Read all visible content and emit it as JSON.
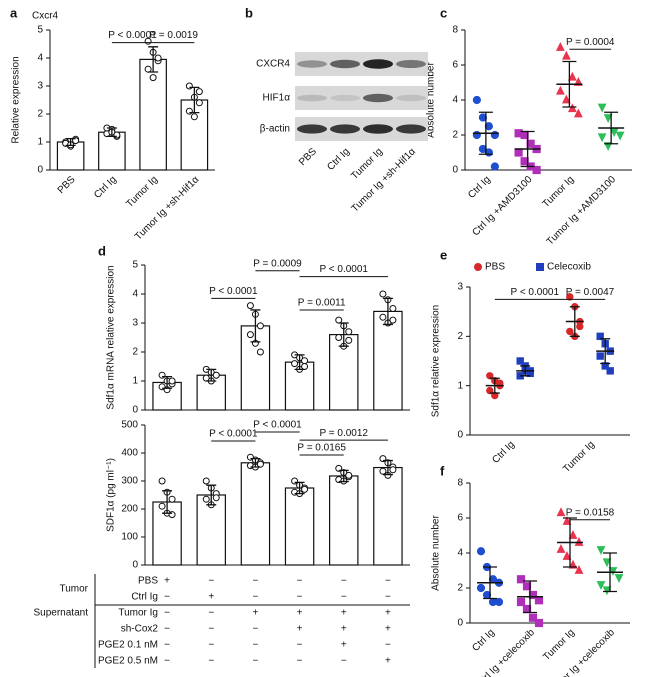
{
  "chart_data": [
    {
      "type": "bar",
      "panel": "a",
      "title": "Cxcr4",
      "ylabel": "Relative expression",
      "categories": [
        "PBS",
        "Ctrl Ig",
        "Tumor Ig",
        "Tumor Ig +sh-Hif1α"
      ],
      "ylim": [
        0,
        5
      ],
      "yticks": [
        0,
        1,
        2,
        3,
        4,
        5
      ],
      "series": [
        {
          "color": "#ffffff",
          "values": [
            1.0,
            1.35,
            3.95,
            2.5
          ],
          "errors": [
            0.12,
            0.15,
            0.45,
            0.45
          ],
          "points": [
            [
              1.0,
              0.85,
              1.1,
              0.95,
              0.9,
              1.05
            ],
            [
              1.3,
              1.45,
              1.2,
              1.5,
              1.35,
              1.25
            ],
            [
              4.6,
              4.2,
              3.9,
              3.6,
              3.3,
              4.0
            ],
            [
              3.0,
              2.6,
              2.4,
              2.1,
              1.9,
              2.8
            ]
          ]
        }
      ],
      "annotations": [
        "P < 0.0001",
        "P = 0.0019"
      ]
    },
    {
      "type": "dot",
      "panel": "c",
      "ylabel": "Absolute number",
      "categories": [
        "Ctrl Ig",
        "Ctrl Ig +AMD3100",
        "Tumor Ig",
        "Tumor Ig +AMD3100"
      ],
      "ylim": [
        0,
        8
      ],
      "yticks": [
        0,
        2,
        4,
        6,
        8
      ],
      "series": [
        {
          "colors": [
            "#1f4fd0",
            "#b02fb8",
            "#e8344e",
            "#2dbe5a"
          ],
          "markers": [
            "circle",
            "square",
            "triangle",
            "triangle-down"
          ],
          "values": [
            2.1,
            1.2,
            4.9,
            2.4
          ],
          "errors": [
            1.2,
            1.0,
            1.3,
            0.9
          ],
          "points": [
            [
              4.0,
              3.0,
              2.5,
              2.0,
              2.0,
              1.2,
              1.0,
              0.2
            ],
            [
              2.1,
              2.0,
              1.5,
              1.2,
              1.0,
              0.5,
              0.2,
              0.0
            ],
            [
              7.0,
              6.5,
              5.3,
              5.0,
              4.5,
              4.0,
              3.5,
              3.2
            ],
            [
              3.6,
              3.0,
              2.2,
              2.0,
              1.9,
              1.4
            ]
          ]
        }
      ],
      "annotations": [
        "P = 0.0004"
      ]
    },
    {
      "type": "bar",
      "panel": "d",
      "ylabel": "Sdf1α mRNA relative expression",
      "categories": [
        null,
        null,
        null,
        null,
        null,
        null
      ],
      "ylim": [
        0,
        5
      ],
      "yticks": [
        0,
        1,
        2,
        3,
        4,
        5
      ],
      "series": [
        {
          "color": "#ffffff",
          "values": [
            0.95,
            1.2,
            2.9,
            1.65,
            2.6,
            3.4
          ],
          "errors": [
            0.2,
            0.2,
            0.55,
            0.25,
            0.4,
            0.45
          ],
          "points": [
            [
              1.2,
              1.0,
              0.9,
              0.8,
              0.7,
              1.0
            ],
            [
              1.4,
              1.3,
              1.2,
              1.1,
              1.0,
              1.2
            ],
            [
              3.6,
              3.3,
              2.9,
              2.6,
              2.3,
              2.0
            ],
            [
              1.9,
              1.8,
              1.7,
              1.6,
              1.4,
              1.5
            ],
            [
              3.1,
              2.9,
              2.7,
              2.5,
              2.2,
              2.4
            ],
            [
              4.0,
              3.8,
              3.5,
              3.2,
              3.0,
              3.1
            ]
          ]
        }
      ],
      "annotations": [
        "P < 0.0001",
        "P = 0.0009",
        "P < 0.0001",
        "P = 0.0011"
      ]
    },
    {
      "type": "bar",
      "ylabel": "SDF1α (pg ml⁻¹)",
      "categories": [
        null,
        null,
        null,
        null,
        null,
        null
      ],
      "ylim": [
        0,
        500
      ],
      "yticks": [
        0,
        100,
        200,
        300,
        400,
        500
      ],
      "series": [
        {
          "color": "#ffffff",
          "values": [
            225,
            250,
            365,
            275,
            318,
            348
          ],
          "errors": [
            40,
            35,
            15,
            20,
            20,
            25
          ],
          "points": [
            [
              300,
              260,
              235,
              210,
              185,
              180
            ],
            [
              300,
              275,
              255,
              235,
              215,
              240
            ],
            [
              385,
              375,
              365,
              355,
              350,
              360
            ],
            [
              300,
              285,
              275,
              260,
              255,
              270
            ],
            [
              345,
              330,
              315,
              305,
              300,
              320
            ],
            [
              380,
              365,
              350,
              335,
              320,
              340
            ]
          ]
        }
      ],
      "annotations": [
        "P < 0.0001",
        "P < 0.0001",
        "P = 0.0012",
        "P = 0.0165"
      ]
    },
    {
      "type": "grouped-dot",
      "panel": "e",
      "ylabel": "Sdf1α relative expression",
      "categories": [
        "Ctrl Ig",
        "Tumor Ig"
      ],
      "ylim": [
        0,
        3
      ],
      "yticks": [
        0,
        1,
        2,
        3
      ],
      "series": [
        {
          "name": "PBS",
          "color": "#d62828",
          "marker": "circle",
          "values": [
            1.0,
            2.3
          ],
          "errors": [
            0.15,
            0.3
          ],
          "points": [
            [
              1.2,
              1.1,
              1.0,
              0.9,
              0.8,
              1.05
            ],
            [
              2.8,
              2.6,
              2.3,
              2.1,
              2.0,
              2.2
            ]
          ]
        },
        {
          "name": "Celecoxib",
          "color": "#1f3fbf",
          "marker": "square",
          "values": [
            1.3,
            1.7
          ],
          "errors": [
            0.1,
            0.25
          ],
          "points": [
            [
              1.5,
              1.4,
              1.3,
              1.2,
              1.3,
              1.25
            ],
            [
              2.0,
              1.85,
              1.7,
              1.6,
              1.4,
              1.3
            ]
          ]
        }
      ],
      "annotations": [
        "P < 0.0001",
        "P = 0.0047"
      ]
    },
    {
      "type": "dot",
      "panel": "f",
      "ylabel": "Absolute number",
      "categories": [
        "Ctrl Ig",
        "Ctrl Ig +celecoxib",
        "Tumor Ig",
        "Tumor Ig +celecoxib"
      ],
      "ylim": [
        0,
        8
      ],
      "yticks": [
        0,
        2,
        4,
        6,
        8
      ],
      "series": [
        {
          "colors": [
            "#1f4fd0",
            "#b02fb8",
            "#e8344e",
            "#2dbe5a"
          ],
          "markers": [
            "circle",
            "square",
            "triangle",
            "triangle-down"
          ],
          "values": [
            2.3,
            1.5,
            4.6,
            2.9
          ],
          "errors": [
            0.9,
            0.9,
            1.4,
            1.1
          ],
          "points": [
            [
              4.1,
              3.2,
              2.5,
              2.3,
              2.0,
              1.6,
              1.2,
              1.2
            ],
            [
              2.5,
              2.1,
              1.6,
              1.3,
              1.2,
              0.8,
              0.3,
              0.0
            ],
            [
              6.3,
              5.8,
              5.0,
              4.6,
              4.2,
              3.8,
              3.3,
              3.0
            ],
            [
              4.2,
              3.5,
              3.0,
              2.6,
              2.2,
              1.9
            ]
          ]
        }
      ],
      "annotations": [
        "P = 0.0158"
      ]
    }
  ],
  "blot": {
    "panel": "b",
    "rows": [
      "CXCR4",
      "HIF1α",
      "β-actin"
    ],
    "lanes": [
      "PBS",
      "Ctrl Ig",
      "Tumor Ig",
      "Tumor Ig +sh-Hif1α"
    ]
  },
  "condition_table": {
    "groups": [
      "Tumor",
      "Supernatant"
    ],
    "rows": [
      {
        "label": "PBS",
        "marks": [
          "+",
          "−",
          "−",
          "−",
          "−",
          "−"
        ]
      },
      {
        "label": "Ctrl Ig",
        "marks": [
          "−",
          "+",
          "−",
          "−",
          "−",
          "−"
        ]
      },
      {
        "label": "Tumor Ig",
        "marks": [
          "−",
          "−",
          "+",
          "+",
          "+",
          "+"
        ]
      },
      {
        "label": "sh-Cox2",
        "marks": [
          "−",
          "−",
          "−",
          "+",
          "+",
          "+"
        ]
      },
      {
        "label": "PGE2 0.1 nM",
        "marks": [
          "−",
          "−",
          "−",
          "−",
          "+",
          "−"
        ]
      },
      {
        "label": "PGE2 0.5 nM",
        "marks": [
          "−",
          "−",
          "−",
          "−",
          "−",
          "+"
        ]
      }
    ]
  }
}
